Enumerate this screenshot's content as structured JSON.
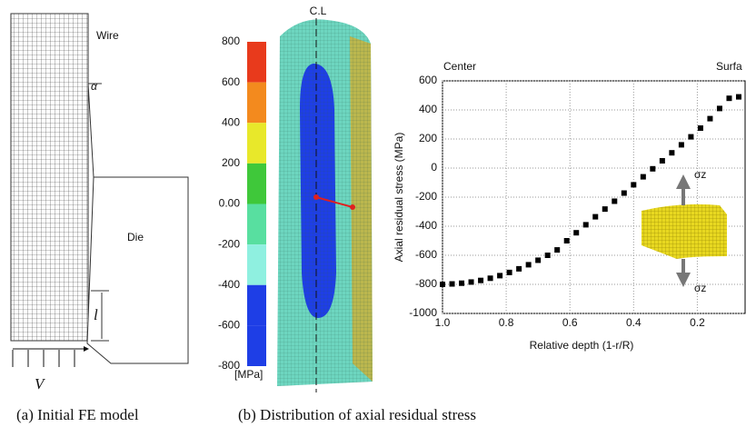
{
  "panel_a": {
    "caption": "(a) Initial FE model",
    "wire": "Wire",
    "die": "Die",
    "alpha": "α",
    "length": "l",
    "velocity": "V"
  },
  "panel_b": {
    "caption": "(b) Distribution of axial residual stress",
    "centerline": "C.L",
    "colorbar": {
      "unit": "[MPa]",
      "ticks": [
        800,
        600,
        400,
        200,
        {
          "value": 0,
          "label": "0.00"
        },
        -200,
        -400,
        -600,
        -800
      ],
      "colors": [
        "#e83a1c",
        "#f38a1e",
        "#e8e82a",
        "#3fc83a",
        "#58dfa0",
        "#8ff0e0",
        "#1e3ee6",
        "#1e3ee6"
      ]
    }
  },
  "chart_data": {
    "type": "scatter",
    "xlabel": "Relative depth (1-r/R)",
    "ylabel": "Axial residual stress (MPa)",
    "annotations": {
      "left": "Center",
      "right": "Surfa",
      "top_stress": "σz",
      "bottom_stress": "σz"
    },
    "color": "#000000",
    "grid": true,
    "x": [
      1.0,
      0.97,
      0.94,
      0.91,
      0.88,
      0.85,
      0.82,
      0.79,
      0.76,
      0.73,
      0.7,
      0.67,
      0.64,
      0.61,
      0.58,
      0.55,
      0.52,
      0.49,
      0.46,
      0.43,
      0.4,
      0.37,
      0.34,
      0.31,
      0.28,
      0.25,
      0.22,
      0.19,
      0.16,
      0.13,
      0.1,
      0.07
    ],
    "values": [
      -800,
      -797,
      -792,
      -784,
      -773,
      -758,
      -740,
      -718,
      -693,
      -665,
      -634,
      -600,
      -563,
      -500,
      -445,
      -390,
      -335,
      -282,
      -228,
      -172,
      -115,
      -60,
      -5,
      50,
      105,
      160,
      215,
      275,
      340,
      410,
      480,
      490
    ],
    "xlim": [
      1.0,
      0.05
    ],
    "xticks": [
      {
        "value": 1.0,
        "label": "1.0"
      },
      0.8,
      0.6,
      0.4,
      0.2
    ],
    "ylim": [
      -1000,
      600
    ],
    "yticks": [
      -1000,
      -800,
      -600,
      -400,
      -200,
      0,
      200,
      400,
      600
    ]
  }
}
